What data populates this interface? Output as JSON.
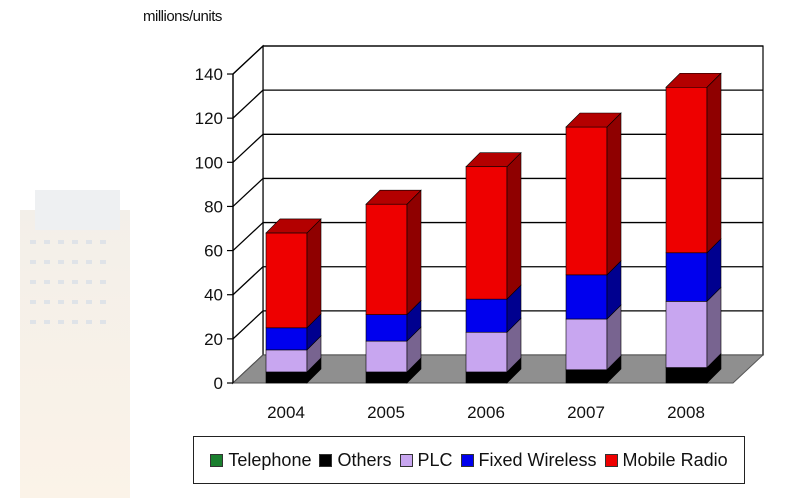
{
  "chart_data": {
    "type": "bar",
    "stacked": true,
    "three_d": true,
    "unit_label": "millions/units",
    "categories": [
      "2004",
      "2005",
      "2006",
      "2007",
      "2008"
    ],
    "ylim": [
      0,
      140
    ],
    "yticks": [
      "0",
      "20",
      "40",
      "60",
      "80",
      "100",
      "120",
      "140"
    ],
    "grid": true,
    "legend_position": "bottom",
    "series": [
      {
        "name": "Telephone",
        "color": "#1a7f2e",
        "values": [
          0,
          0,
          0,
          0,
          0
        ]
      },
      {
        "name": "Others",
        "color": "#000000",
        "values": [
          5,
          5,
          5,
          6,
          7
        ]
      },
      {
        "name": "PLC",
        "color": "#c8a6f0",
        "values": [
          10,
          14,
          18,
          23,
          30
        ]
      },
      {
        "name": "Fixed Wireless",
        "color": "#0000ee",
        "values": [
          10,
          12,
          15,
          20,
          22
        ]
      },
      {
        "name": "Mobile Radio",
        "color": "#ee0000",
        "values": [
          43,
          50,
          60,
          67,
          75
        ]
      }
    ]
  }
}
